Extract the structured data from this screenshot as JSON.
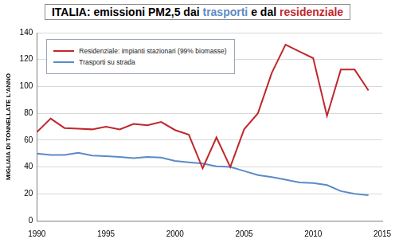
{
  "chart_data": {
    "type": "line",
    "title": "ITALIA: emissioni PM2,5 dai trasporti e dal residenziale",
    "y_label": "MIGLIAIA DI TONNELLATE L'ANNO",
    "x": [
      1990,
      1991,
      1992,
      1993,
      1994,
      1995,
      1996,
      1997,
      1998,
      1999,
      2000,
      2001,
      2002,
      2003,
      2004,
      2005,
      2006,
      2007,
      2008,
      2009,
      2010,
      2011,
      2012,
      2013,
      2014
    ],
    "series": [
      {
        "name": "Residenziale: impianti stazionari (99% biomasse)",
        "color": "#c0282d",
        "values": [
          66,
          76,
          69,
          68.5,
          68,
          70,
          68,
          72,
          71,
          73.5,
          67.5,
          64,
          39,
          62,
          40,
          68,
          80,
          110,
          131,
          126,
          121,
          78,
          112.5,
          112.5,
          97
        ]
      },
      {
        "name": "Trasporti su strada",
        "color": "#5b8bc7",
        "values": [
          50,
          49,
          49,
          50.5,
          48.5,
          48,
          47.5,
          46.5,
          47.5,
          47,
          44.5,
          43.5,
          42.5,
          40.5,
          40,
          37,
          34,
          32.5,
          30.5,
          28.5,
          28,
          26.5,
          22,
          20,
          19
        ]
      }
    ],
    "xlim": [
      1990,
      2015
    ],
    "xticks": [
      1990,
      1995,
      2000,
      2005,
      2010,
      2015
    ],
    "ylim": [
      0,
      140
    ],
    "yticks": [
      0,
      20,
      40,
      60,
      80,
      100,
      120,
      140
    ],
    "grid": true,
    "legend": "upper left"
  }
}
